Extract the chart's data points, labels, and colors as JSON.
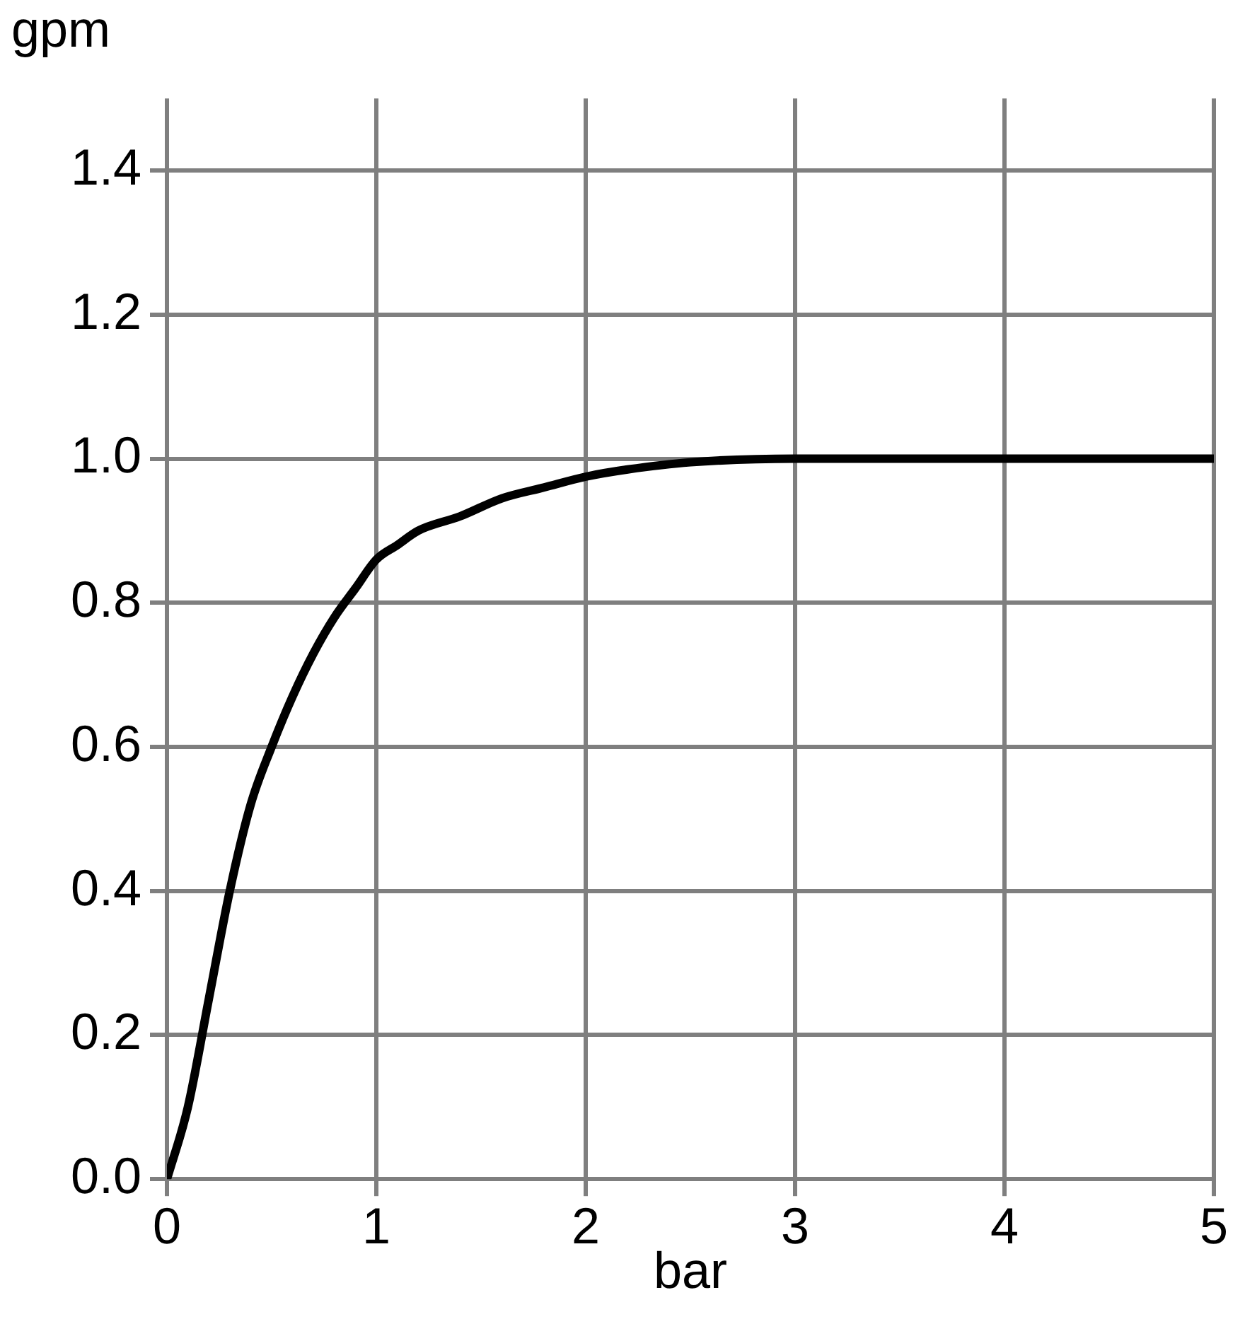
{
  "chart_data": {
    "type": "line",
    "xlabel": "bar",
    "ylabel": "gpm",
    "x": [
      0,
      0.1,
      0.2,
      0.3,
      0.4,
      0.5,
      0.6,
      0.7,
      0.8,
      0.9,
      1.0,
      1.1,
      1.2,
      1.4,
      1.6,
      1.8,
      2.0,
      2.2,
      2.5,
      3,
      4,
      5
    ],
    "series": [
      {
        "color": "#000000",
        "values": [
          0,
          0.1,
          0.25,
          0.4,
          0.52,
          0.6,
          0.67,
          0.73,
          0.78,
          0.82,
          0.86,
          0.88,
          0.9,
          0.92,
          0.945,
          0.96,
          0.975,
          0.985,
          0.995,
          1.0,
          1.0,
          1.0
        ]
      }
    ],
    "xlim": [
      0,
      5
    ],
    "xticks": [
      0,
      1,
      2,
      3,
      4,
      5
    ],
    "ylim": [
      0,
      1.5
    ],
    "yticks": [
      {
        "value": 0,
        "label": "0.0"
      },
      {
        "value": 0.2,
        "label": "0.2"
      },
      {
        "value": 0.4,
        "label": "0.4"
      },
      {
        "value": 0.6,
        "label": "0.6"
      },
      {
        "value": 0.8,
        "label": "0.8"
      },
      {
        "value": 1.0,
        "label": "1.0"
      },
      {
        "value": 1.2,
        "label": "1.2"
      },
      {
        "value": 1.4,
        "label": "1.4"
      }
    ],
    "grid": true,
    "legend": false,
    "marker": "none",
    "line_style": "solid"
  }
}
